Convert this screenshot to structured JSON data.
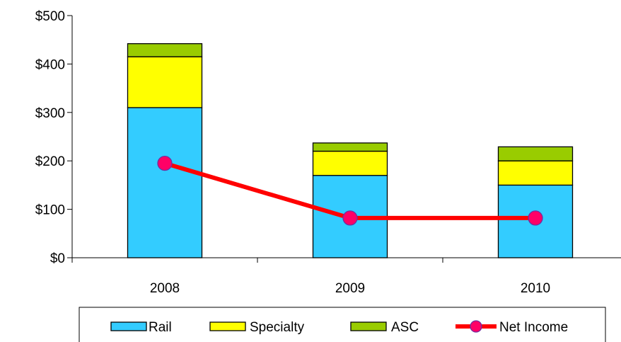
{
  "chart_data": {
    "type": "bar",
    "stacked": true,
    "categories": [
      "2008",
      "2009",
      "2010"
    ],
    "series": [
      {
        "name": "Rail",
        "type": "bar",
        "color": "#33CCFF",
        "values": [
          310,
          170,
          150
        ]
      },
      {
        "name": "Specialty",
        "type": "bar",
        "color": "#FFFF00",
        "values": [
          105,
          50,
          50
        ]
      },
      {
        "name": "ASC",
        "type": "bar",
        "color": "#99CC00",
        "values": [
          27,
          17,
          29
        ]
      },
      {
        "name": "Net Income",
        "type": "line",
        "color": "#FF0000",
        "marker_color": "#FF0066",
        "values": [
          195,
          82,
          82
        ]
      }
    ],
    "ylim": [
      0,
      500
    ],
    "yticks": [
      0,
      100,
      200,
      300,
      400,
      500
    ],
    "ytick_labels": [
      "$0",
      "$100",
      "$200",
      "$300",
      "$400",
      "$500"
    ],
    "legend": {
      "position": "bottom",
      "entries": [
        "Rail",
        "Specialty",
        "ASC",
        "Net Income"
      ]
    },
    "grid": false
  }
}
